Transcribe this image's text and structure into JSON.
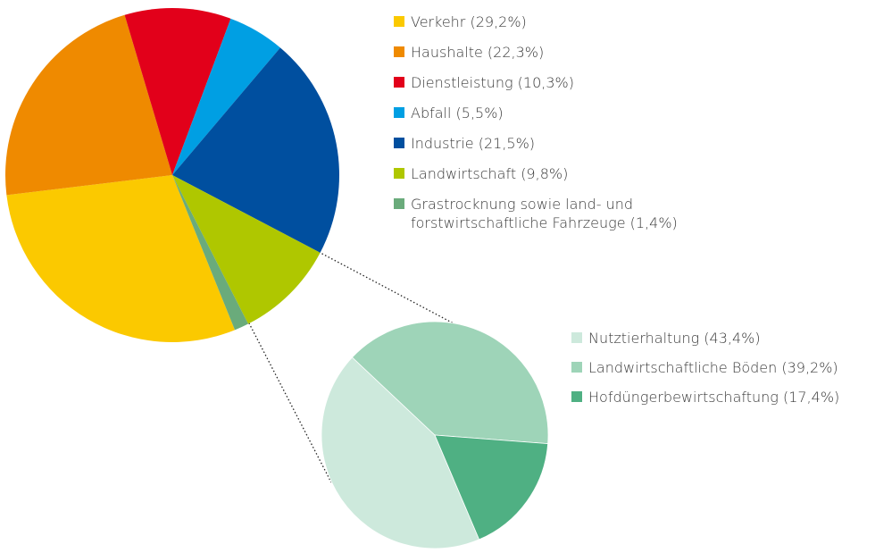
{
  "chart_data": [
    {
      "type": "pie",
      "categories": [
        "Verkehr (29,2%)",
        "Haushalte (22,3%)",
        "Dienstleistung (10,3%)",
        "Abfall (5,5%)",
        "Industrie (21,5%)",
        "Landwirtschaft (9,8%)",
        "Grastrocknung sowie land- und forstwirtschaftliche Fahrzeuge (1,4%)"
      ],
      "values": [
        29.2,
        22.3,
        10.3,
        5.5,
        21.5,
        9.8,
        1.4
      ],
      "colors": [
        "#fbc900",
        "#ef8a00",
        "#e2001a",
        "#009fe3",
        "#004f9f",
        "#afc700",
        "#6aab7b"
      ]
    },
    {
      "type": "pie",
      "categories": [
        "Nutztierhaltung (43,4%)",
        "Landwirtschaftliche Böden (39,2%)",
        "Hofdüngerbewirtschaftung (17,4%)"
      ],
      "values": [
        43.4,
        39.2,
        17.4
      ],
      "colors": [
        "#cde9dc",
        "#9ed4b8",
        "#4fb083"
      ]
    }
  ]
}
